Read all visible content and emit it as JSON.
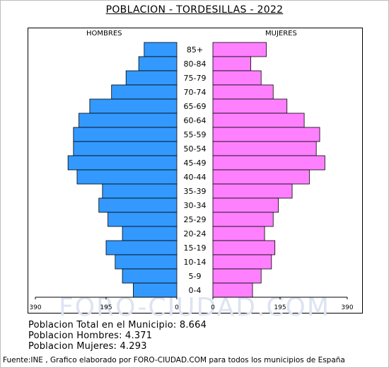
{
  "title": "POBLACION - TORDESILLAS - 2022",
  "header_male": "HOMBRES",
  "header_female": "MUJERES",
  "watermark": "FORO-CIUDAD.COM",
  "summary": {
    "total": "Poblacion Total en el Municipio: 8.664",
    "male": "Poblacion Hombres: 4.371",
    "female": "Poblacion Mujeres: 4.293"
  },
  "source": "Fuente:INE , Grafico elaborado por FORO-CIUDAD.COM para todos los municipios de España",
  "colors": {
    "male": "#3399ff",
    "female": "#ff80ff"
  },
  "chart_data": {
    "type": "bar",
    "orientation": "horizontal-pyramid",
    "categories": [
      "85+",
      "80-84",
      "75-79",
      "70-74",
      "65-69",
      "60-64",
      "55-59",
      "50-54",
      "45-49",
      "40-44",
      "35-39",
      "30-34",
      "25-29",
      "20-24",
      "15-19",
      "10-14",
      "5-9",
      "0-4"
    ],
    "series": [
      {
        "name": "HOMBRES",
        "values": [
          90,
          105,
          140,
          180,
          240,
          270,
          285,
          285,
          300,
          275,
          205,
          215,
          190,
          150,
          195,
          170,
          150,
          120
        ]
      },
      {
        "name": "MUJERES",
        "values": [
          155,
          110,
          140,
          175,
          215,
          265,
          310,
          300,
          325,
          280,
          230,
          190,
          175,
          150,
          180,
          170,
          140,
          115
        ]
      }
    ],
    "xlim": [
      0,
      390
    ],
    "x_ticks_left": [
      "390",
      "195",
      "0"
    ],
    "x_ticks_right": [
      "0",
      "195",
      "390"
    ]
  }
}
